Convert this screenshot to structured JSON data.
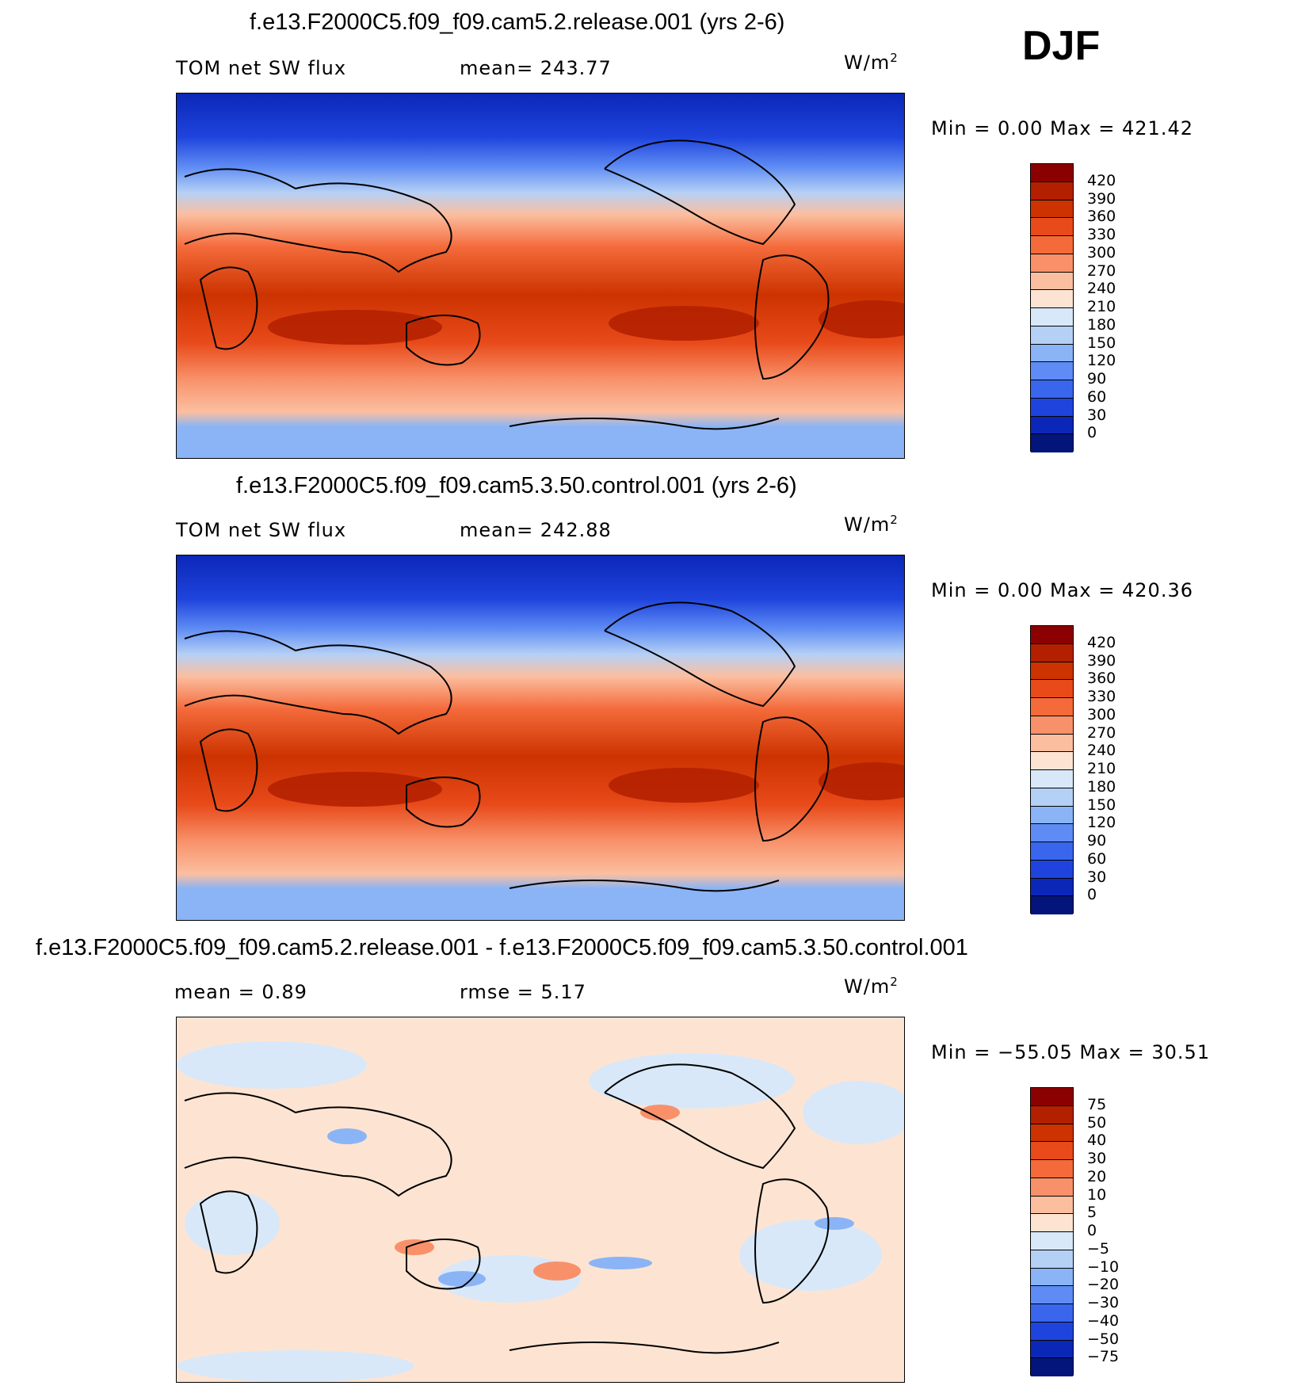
{
  "season": "DJF",
  "panels": [
    {
      "title": "f.e13.F2000C5.f09_f09.cam5.2.release.001 (yrs 2-6)",
      "left_label": "TOM net SW flux",
      "mid_label": "mean= 243.77",
      "units": "W/m",
      "units_sup": "2",
      "minmax": "Min =    0.00 Max = 421.42",
      "colorbar_ticks": [
        "420",
        "390",
        "360",
        "330",
        "300",
        "270",
        "240",
        "210",
        "180",
        "150",
        "120",
        "90",
        "60",
        "30",
        "0"
      ],
      "colorbar_colors": [
        "#8b0000",
        "#b22000",
        "#cc3300",
        "#e84a1a",
        "#f46a3a",
        "#f8916a",
        "#fbbfa0",
        "#fde4d2",
        "#d9e8f8",
        "#b5d0f5",
        "#8ab4f6",
        "#5e8cf4",
        "#3a66ee",
        "#1f44dd",
        "#0b27b8",
        "#03157a"
      ]
    },
    {
      "title": "f.e13.F2000C5.f09_f09.cam5.3.50.control.001 (yrs 2-6)",
      "left_label": "TOM net SW flux",
      "mid_label": "mean= 242.88",
      "units": "W/m",
      "units_sup": "2",
      "minmax": "Min =    0.00 Max = 420.36",
      "colorbar_ticks": [
        "420",
        "390",
        "360",
        "330",
        "300",
        "270",
        "240",
        "210",
        "180",
        "150",
        "120",
        "90",
        "60",
        "30",
        "0"
      ],
      "colorbar_colors": [
        "#8b0000",
        "#b22000",
        "#cc3300",
        "#e84a1a",
        "#f46a3a",
        "#f8916a",
        "#fbbfa0",
        "#fde4d2",
        "#d9e8f8",
        "#b5d0f5",
        "#8ab4f6",
        "#5e8cf4",
        "#3a66ee",
        "#1f44dd",
        "#0b27b8",
        "#03157a"
      ]
    },
    {
      "title": "f.e13.F2000C5.f09_f09.cam5.2.release.001 - f.e13.F2000C5.f09_f09.cam5.3.50.control.001",
      "left_label": "mean =    0.89",
      "mid_label": "rmse =    5.17",
      "units": "W/m",
      "units_sup": "2",
      "minmax": "Min = −55.05 Max =   30.51",
      "colorbar_ticks": [
        "75",
        "50",
        "40",
        "30",
        "20",
        "10",
        "5",
        "0",
        "−5",
        "−10",
        "−20",
        "−30",
        "−40",
        "−50",
        "−75"
      ],
      "colorbar_colors": [
        "#8b0000",
        "#b22000",
        "#cc3300",
        "#e84a1a",
        "#f46a3a",
        "#f8916a",
        "#fbbfa0",
        "#fde4d2",
        "#d9e8f8",
        "#b5d0f5",
        "#8ab4f6",
        "#5e8cf4",
        "#3a66ee",
        "#1f44dd",
        "#0b27b8",
        "#03157a"
      ]
    }
  ]
}
